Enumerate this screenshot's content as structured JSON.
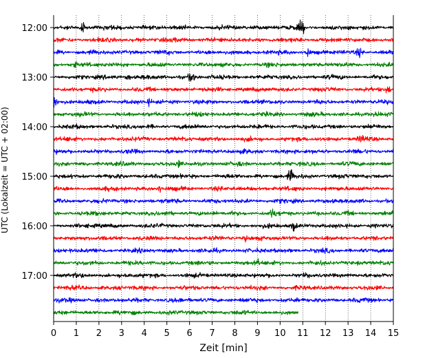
{
  "chart_data": {
    "type": "line",
    "title": "",
    "xlabel": "Zeit  [min]",
    "ylabel": "UTC (Lokalzeit = UTC + 02:00)",
    "xlim": [
      0,
      15
    ],
    "x_ticks": [
      "0",
      "1",
      "2",
      "3",
      "4",
      "5",
      "6",
      "7",
      "8",
      "9",
      "10",
      "11",
      "12",
      "13",
      "14",
      "15"
    ],
    "y_ticks": [
      "12:00",
      "13:00",
      "14:00",
      "15:00",
      "16:00",
      "17:00"
    ],
    "grid": "vertical dotted",
    "colors": [
      "#000000",
      "#ff0000",
      "#0000ff",
      "#008000"
    ],
    "traces": [
      {
        "start": "12:00",
        "color": "#000000",
        "end_min": 15,
        "events": [
          {
            "t": 1.3,
            "amp": 2.2
          },
          {
            "t": 10.95,
            "amp": 3.2
          }
        ]
      },
      {
        "start": "12:15",
        "color": "#ff0000",
        "end_min": 15,
        "events": []
      },
      {
        "start": "12:30",
        "color": "#0000ff",
        "end_min": 15,
        "events": [
          {
            "t": 11.2,
            "amp": 2.2
          },
          {
            "t": 13.5,
            "amp": 1.6
          }
        ]
      },
      {
        "start": "12:45",
        "color": "#008000",
        "end_min": 15,
        "events": [
          {
            "t": 0.9,
            "amp": 1.4
          }
        ]
      },
      {
        "start": "13:00",
        "color": "#000000",
        "end_min": 15,
        "events": [
          {
            "t": 6.1,
            "amp": 3.0
          },
          {
            "t": 3.3,
            "amp": 1.4
          }
        ]
      },
      {
        "start": "13:15",
        "color": "#ff0000",
        "end_min": 15,
        "events": [
          {
            "t": 14.8,
            "amp": 2.0
          }
        ]
      },
      {
        "start": "13:30",
        "color": "#0000ff",
        "end_min": 15,
        "events": [
          {
            "t": 0.05,
            "amp": 2.4
          },
          {
            "t": 4.2,
            "amp": 1.4
          }
        ]
      },
      {
        "start": "13:45",
        "color": "#008000",
        "end_min": 15,
        "events": []
      },
      {
        "start": "14:00",
        "color": "#000000",
        "end_min": 15,
        "events": []
      },
      {
        "start": "14:15",
        "color": "#ff0000",
        "end_min": 15,
        "events": [
          {
            "t": 13.6,
            "amp": 1.3
          }
        ]
      },
      {
        "start": "14:30",
        "color": "#0000ff",
        "end_min": 15,
        "events": []
      },
      {
        "start": "14:45",
        "color": "#008000",
        "end_min": 15,
        "events": [
          {
            "t": 5.5,
            "amp": 1.4
          }
        ]
      },
      {
        "start": "15:00",
        "color": "#000000",
        "end_min": 15,
        "events": [
          {
            "t": 10.45,
            "amp": 3.0
          }
        ]
      },
      {
        "start": "15:15",
        "color": "#ff0000",
        "end_min": 15,
        "events": [
          {
            "t": 4.7,
            "amp": 1.4
          }
        ]
      },
      {
        "start": "15:30",
        "color": "#0000ff",
        "end_min": 15,
        "events": []
      },
      {
        "start": "15:45",
        "color": "#008000",
        "end_min": 15,
        "events": [
          {
            "t": 9.7,
            "amp": 1.6
          }
        ]
      },
      {
        "start": "16:00",
        "color": "#000000",
        "end_min": 15,
        "events": [
          {
            "t": 10.6,
            "amp": 2.6
          }
        ]
      },
      {
        "start": "16:15",
        "color": "#ff0000",
        "end_min": 15,
        "events": [
          {
            "t": 8.5,
            "amp": 1.3
          }
        ]
      },
      {
        "start": "16:30",
        "color": "#0000ff",
        "end_min": 15,
        "events": []
      },
      {
        "start": "16:45",
        "color": "#008000",
        "end_min": 15,
        "events": [
          {
            "t": 9.0,
            "amp": 1.3
          }
        ]
      },
      {
        "start": "17:00",
        "color": "#000000",
        "end_min": 15,
        "events": []
      },
      {
        "start": "17:15",
        "color": "#ff0000",
        "end_min": 15,
        "events": []
      },
      {
        "start": "17:30",
        "color": "#0000ff",
        "end_min": 15,
        "events": []
      },
      {
        "start": "17:45",
        "color": "#008000",
        "end_min": 10.8,
        "events": []
      }
    ]
  }
}
